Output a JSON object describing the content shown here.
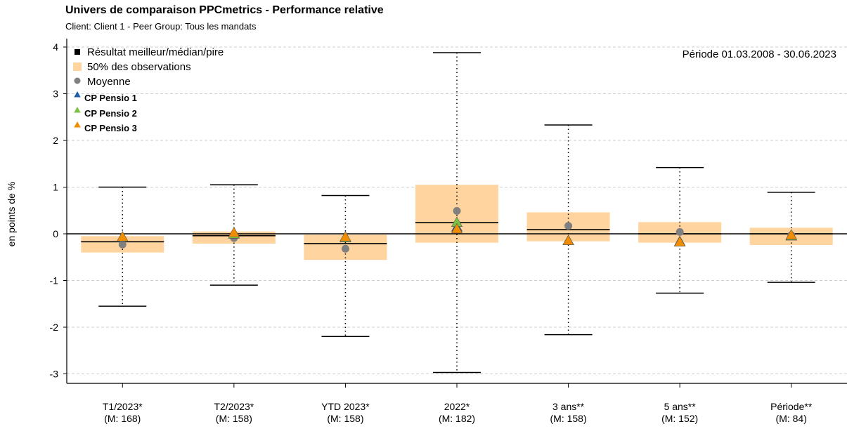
{
  "chart_data": {
    "type": "box",
    "title": "Univers de comparaison PPCmetrics - Performance relative",
    "subtitle": "Client: Client 1 - Peer Group: Tous les mandats",
    "ylabel": "en points de %",
    "period_label": "Période 01.03.2008 - 30.06.2023",
    "ylim": [
      -3.2,
      4.1
    ],
    "yticks": [
      4,
      3,
      2,
      1,
      0,
      -1,
      -2,
      -3
    ],
    "grid": "horizontal dashed",
    "legend_position": "top-left",
    "legend": {
      "range": "Résultat meilleur/médian/pire",
      "box": "50% des observations",
      "mean": "Moyenne"
    },
    "colors": {
      "box": "#ffd49e",
      "mean": "#808080",
      "CP Pensio 1": "#1f5fa8",
      "CP Pensio 2": "#7cc242",
      "CP Pensio 3": "#f28c00"
    },
    "categories": [
      {
        "label": "T1/2023*",
        "count": "(M: 168)",
        "best": 1.0,
        "median": -0.17,
        "worst": -1.55,
        "q3": -0.05,
        "q1": -0.4,
        "mean": -0.23
      },
      {
        "label": "T2/2023*",
        "count": "(M: 158)",
        "best": 1.05,
        "median": -0.04,
        "worst": -1.1,
        "q3": 0.05,
        "q1": -0.21,
        "mean": -0.09
      },
      {
        "label": "YTD 2023*",
        "count": "(M: 158)",
        "best": 0.82,
        "median": -0.21,
        "worst": -2.2,
        "q3": -0.02,
        "q1": -0.56,
        "mean": -0.32
      },
      {
        "label": "2022*",
        "count": "(M: 182)",
        "best": 3.88,
        "median": 0.24,
        "worst": -2.97,
        "q3": 1.05,
        "q1": -0.19,
        "mean": 0.49
      },
      {
        "label": "3 ans**",
        "count": "(M: 158)",
        "best": 2.33,
        "median": 0.09,
        "worst": -2.16,
        "q3": 0.46,
        "q1": -0.16,
        "mean": 0.17
      },
      {
        "label": "5 ans**",
        "count": "(M: 152)",
        "best": 1.42,
        "median": 0.0,
        "worst": -1.27,
        "q3": 0.25,
        "q1": -0.19,
        "mean": 0.04
      },
      {
        "label": "Période**",
        "count": "(M: 84)",
        "best": 0.89,
        "median": 0.0,
        "worst": -1.04,
        "q3": 0.13,
        "q1": -0.24,
        "mean": -0.03
      }
    ],
    "series": [
      {
        "name": "CP Pensio 1",
        "values": [
          -0.08,
          -0.01,
          -0.09,
          0.14,
          -0.15,
          -0.17,
          -0.05
        ]
      },
      {
        "name": "CP Pensio 2",
        "values": [
          -0.08,
          -0.01,
          -0.09,
          0.24,
          -0.15,
          -0.17,
          -0.05
        ]
      },
      {
        "name": "CP Pensio 3",
        "values": [
          -0.07,
          0.02,
          -0.07,
          0.1,
          -0.15,
          -0.18,
          -0.03
        ]
      }
    ]
  }
}
